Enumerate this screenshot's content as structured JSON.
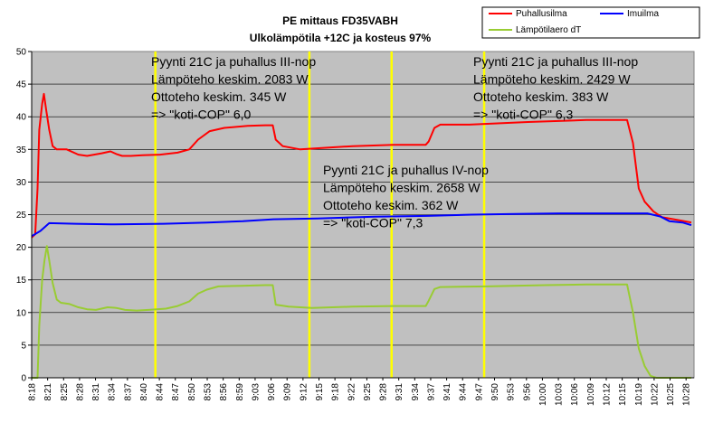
{
  "chart_data": {
    "type": "line",
    "title": "PE mittaus FD35VABH",
    "subtitle": "Ulkolämpötila +12C ja kosteus 97%",
    "ylim": [
      0,
      50
    ],
    "yticks": [
      0,
      5,
      10,
      15,
      20,
      25,
      30,
      35,
      40,
      45,
      50
    ],
    "xlabels": [
      "8:18",
      "8:21",
      "8:25",
      "8:28",
      "8:31",
      "8:34",
      "8:37",
      "8:40",
      "8:44",
      "8:47",
      "8:50",
      "8:53",
      "8:56",
      "8:59",
      "9:03",
      "9:06",
      "9:09",
      "9:12",
      "9:15",
      "9:18",
      "9:22",
      "9:25",
      "9:28",
      "9:31",
      "9:34",
      "9:37",
      "9:41",
      "9:44",
      "9:47",
      "9:50",
      "9:53",
      "9:56",
      "10:00",
      "10:03",
      "10:06",
      "10:09",
      "10:12",
      "10:15",
      "10:19",
      "10:22",
      "10:25",
      "10:28"
    ],
    "grid": true,
    "legend_position": "top-right",
    "background_color": "#c0c0c0",
    "series": [
      {
        "name": "Puhallusilma",
        "color": "#ff0000",
        "points": [
          [
            0,
            21.5
          ],
          [
            0.6,
            22
          ],
          [
            1.0,
            29
          ],
          [
            1.3,
            38
          ],
          [
            1.8,
            42
          ],
          [
            2.1,
            43.5
          ],
          [
            2.5,
            41
          ],
          [
            3.0,
            38
          ],
          [
            3.6,
            35.5
          ],
          [
            4.3,
            35
          ],
          [
            6.0,
            35
          ],
          [
            8.0,
            34.2
          ],
          [
            9.5,
            34
          ],
          [
            12.0,
            34.4
          ],
          [
            13.5,
            34.7
          ],
          [
            14.5,
            34.3
          ],
          [
            15.5,
            34.0
          ],
          [
            17.0,
            34.0
          ],
          [
            19.0,
            34.1
          ],
          [
            22.0,
            34.2
          ],
          [
            25.0,
            34.5
          ],
          [
            27.0,
            35
          ],
          [
            28.5,
            36.5
          ],
          [
            30.5,
            37.8
          ],
          [
            33.0,
            38.3
          ],
          [
            37.0,
            38.6
          ],
          [
            40.0,
            38.7
          ],
          [
            41.3,
            38.7
          ],
          [
            41.8,
            36.5
          ],
          [
            43.0,
            35.5
          ],
          [
            46.0,
            35.0
          ],
          [
            55.0,
            35.5
          ],
          [
            62.0,
            35.7
          ],
          [
            67.5,
            35.7
          ],
          [
            68.0,
            36.2
          ],
          [
            69.0,
            38.3
          ],
          [
            70.0,
            38.8
          ],
          [
            75.0,
            38.8
          ],
          [
            85.0,
            39.2
          ],
          [
            95.0,
            39.5
          ],
          [
            100.0,
            39.5
          ],
          [
            102.0,
            39.5
          ],
          [
            103.0,
            36
          ],
          [
            104.0,
            29
          ],
          [
            105.0,
            27
          ],
          [
            106.5,
            25.5
          ],
          [
            108.0,
            24.6
          ],
          [
            110.0,
            24.3
          ],
          [
            113.0,
            23.8
          ]
        ]
      },
      {
        "name": "Imuilma",
        "color": "#0000ff",
        "points": [
          [
            0,
            21.7
          ],
          [
            2,
            22.5
          ],
          [
            4,
            23.7
          ],
          [
            10,
            23.6
          ],
          [
            18,
            23.5
          ],
          [
            30,
            23.6
          ],
          [
            40,
            23.8
          ],
          [
            48,
            24.0
          ],
          [
            55,
            24.3
          ],
          [
            65,
            24.4
          ],
          [
            78,
            24.7
          ],
          [
            90,
            24.8
          ],
          [
            100,
            25.0
          ],
          [
            110,
            25.1
          ],
          [
            120,
            25.2
          ],
          [
            135,
            25.2
          ],
          [
            140,
            25.2
          ],
          [
            143,
            24.7
          ],
          [
            145,
            24.0
          ],
          [
            148,
            23.8
          ],
          [
            150,
            23.4
          ]
        ]
      },
      {
        "name": "Lämpötilaero dT",
        "color": "#99cc33",
        "points": [
          [
            0,
            0
          ],
          [
            1.0,
            0
          ],
          [
            1.3,
            8
          ],
          [
            1.8,
            15
          ],
          [
            2.2,
            18
          ],
          [
            2.6,
            20.2
          ],
          [
            3.0,
            18
          ],
          [
            3.6,
            14.5
          ],
          [
            4.3,
            12.0
          ],
          [
            5.0,
            11.5
          ],
          [
            6.5,
            11.3
          ],
          [
            8.0,
            10.8
          ],
          [
            9.5,
            10.5
          ],
          [
            11.0,
            10.4
          ],
          [
            13.0,
            10.8
          ],
          [
            14.5,
            10.7
          ],
          [
            16.0,
            10.4
          ],
          [
            18.0,
            10.3
          ],
          [
            20.0,
            10.4
          ],
          [
            23.0,
            10.6
          ],
          [
            25.0,
            11.0
          ],
          [
            27.0,
            11.7
          ],
          [
            28.5,
            12.9
          ],
          [
            30.0,
            13.5
          ],
          [
            32.0,
            14.0
          ],
          [
            36.0,
            14.1
          ],
          [
            40.0,
            14.2
          ],
          [
            41.3,
            14.2
          ],
          [
            41.8,
            11.2
          ],
          [
            44.0,
            10.9
          ],
          [
            48.0,
            10.7
          ],
          [
            55.0,
            10.9
          ],
          [
            62.0,
            11.0
          ],
          [
            67.5,
            11.0
          ],
          [
            68.0,
            11.8
          ],
          [
            69.0,
            13.6
          ],
          [
            70.0,
            13.9
          ],
          [
            78.0,
            14.0
          ],
          [
            88.0,
            14.2
          ],
          [
            95.0,
            14.3
          ],
          [
            102.0,
            14.3
          ],
          [
            103.0,
            10
          ],
          [
            104.0,
            4.5
          ],
          [
            105.0,
            1.8
          ],
          [
            106.0,
            0.3
          ],
          [
            107.0,
            0.0
          ],
          [
            113.0,
            0.0
          ]
        ]
      }
    ],
    "vertical_markers": [
      7.75,
      17.4,
      22.55,
      28.35
    ],
    "marker_color": "#ffff00",
    "annotations": [
      {
        "lines": [
          "Pyynti 21C ja puhallus III-nop",
          "Lämpöteho keskim. 2083 W",
          "Ottoteho keskim. 345 W",
          "=> \"koti-COP\" 6,0"
        ]
      },
      {
        "lines": [
          "Pyynti 21C ja puhallus IV-nop",
          "Lämpöteho keskim. 2658 W",
          "Ottoteho keskim. 362 W",
          "=> \"koti-COP\" 7,3"
        ]
      },
      {
        "lines": [
          "Pyynti 21C ja puhallus III-nop",
          "Lämpöteho keskim. 2429 W",
          "Ottoteho keskim. 383 W",
          "=> \"koti-COP\" 6,3"
        ]
      }
    ]
  }
}
